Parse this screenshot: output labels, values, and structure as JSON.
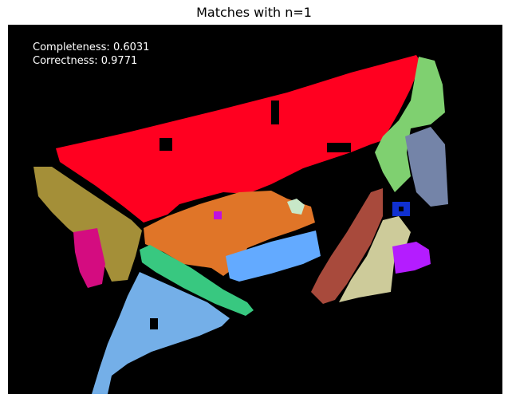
{
  "title": "Matches with n=1",
  "metrics": {
    "completeness": "Completeness: 0.6031",
    "correctness": "Correctness: 0.9771"
  },
  "colors": {
    "background": "#000000",
    "red": "#ff0020",
    "green": "#7fd070",
    "slate": "#7484a8",
    "olive": "#a48f38",
    "magenta": "#d40c80",
    "orange": "#e07528",
    "sky_blue": "#63aaff",
    "mint": "#c8e8c8",
    "teal": "#38c880",
    "light_blue": "#74afe8",
    "brown": "#a84a3c",
    "beige": "#cdcb9a",
    "purple": "#b41cff",
    "blue": "#1030d0"
  }
}
